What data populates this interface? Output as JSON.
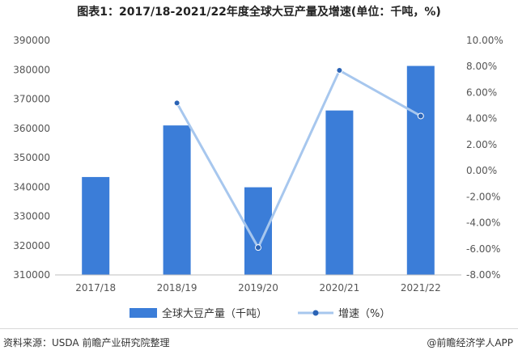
{
  "chart_data": {
    "type": "bar",
    "title": "图表1：2017/18-2021/22年度全球大豆产量及增速(单位：千吨，%)",
    "categories": [
      "2017/18",
      "2018/19",
      "2019/20",
      "2020/21",
      "2021/22"
    ],
    "series": [
      {
        "name": "全球大豆产量（千吨）",
        "type": "bar",
        "axis": "left",
        "values": [
          343400,
          361000,
          339900,
          366100,
          381300
        ]
      },
      {
        "name": "增速（%）",
        "type": "line",
        "axis": "right",
        "values": [
          null,
          5.2,
          -5.9,
          7.7,
          4.2
        ]
      }
    ],
    "left_axis": {
      "min": 310000,
      "max": 390000,
      "step": 10000,
      "ticks": [
        "310000",
        "320000",
        "330000",
        "340000",
        "350000",
        "360000",
        "370000",
        "380000",
        "390000"
      ]
    },
    "right_axis": {
      "min": -8,
      "max": 10,
      "step": 2,
      "ticks": [
        "-8.00%",
        "-6.00%",
        "-4.00%",
        "-2.00%",
        "0.00%",
        "2.00%",
        "4.00%",
        "6.00%",
        "8.00%",
        "10.00%"
      ]
    },
    "legend_position": "bottom",
    "grid": false,
    "colors": {
      "bar": "#3b7dd8",
      "line": "#a7c7ee",
      "marker": "#2a63b5"
    }
  },
  "footer": {
    "source": "资料来源：USDA 前瞻产业研究院整理",
    "credit": "@前瞻经济学人APP"
  }
}
